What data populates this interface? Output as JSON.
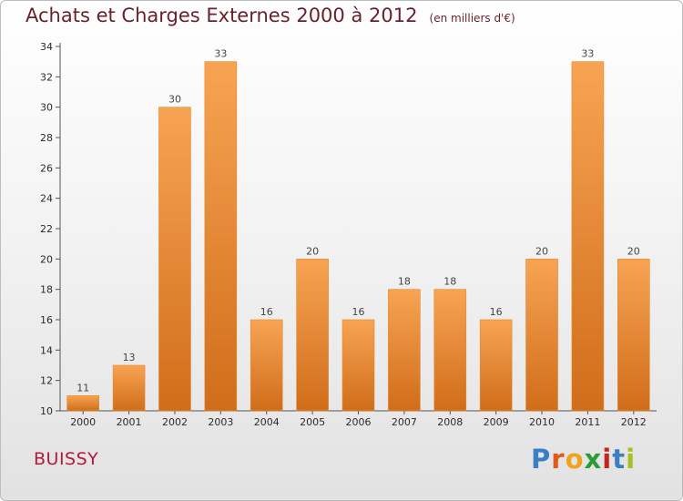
{
  "header": {
    "title": "Achats et Charges Externes 2000 à 2012",
    "subtitle": "(en milliers d'€)"
  },
  "commune": "BUISSY",
  "logo": {
    "text": "Proxiti",
    "letters": [
      {
        "ch": "P",
        "color": "#3a7fc4"
      },
      {
        "ch": "r",
        "color": "#e05a1a"
      },
      {
        "ch": "o",
        "color": "#f0a21a"
      },
      {
        "ch": "x",
        "color": "#2f9a3a"
      },
      {
        "ch": "i",
        "color": "#c2261f"
      },
      {
        "ch": "t",
        "color": "#3a7fc4"
      },
      {
        "ch": "i",
        "color": "#a8c020"
      }
    ]
  },
  "chart_data": {
    "type": "bar",
    "title": "Achats et Charges Externes 2000 à 2012",
    "subtitle": "(en milliers d'€)",
    "categories": [
      "2000",
      "2001",
      "2002",
      "2003",
      "2004",
      "2005",
      "2006",
      "2007",
      "2008",
      "2009",
      "2010",
      "2011",
      "2012"
    ],
    "values": [
      11,
      13,
      30,
      33,
      16,
      20,
      16,
      18,
      18,
      16,
      20,
      33,
      20
    ],
    "ylim": [
      10,
      34
    ],
    "yticks": [
      10,
      12,
      14,
      16,
      18,
      20,
      22,
      24,
      26,
      28,
      30,
      32,
      34
    ],
    "grid": false,
    "bar_color_top": "#f7a452",
    "bar_color_bottom": "#d06d1a",
    "xlabel": "",
    "ylabel": ""
  }
}
